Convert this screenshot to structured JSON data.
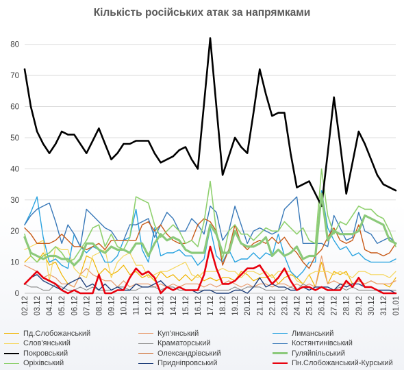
{
  "chart_data": {
    "type": "line",
    "title": "Кількість російських атак за напрямками",
    "xlabel": "",
    "ylabel": "",
    "ylim": [
      0,
      85
    ],
    "yticks": [
      0,
      10,
      20,
      30,
      40,
      50,
      60,
      70,
      80
    ],
    "grid": true,
    "legend_position": "bottom",
    "categories": [
      "02.12",
      "03.12",
      "04.12",
      "05.12",
      "06.12",
      "07.12",
      "08.12",
      "09.12",
      "10.12",
      "11.12",
      "12.12",
      "13.12",
      "14.12",
      "15.12",
      "16.12",
      "17.12",
      "18.12",
      "19.12",
      "20.12",
      "21.12",
      "22.12",
      "23.12",
      "24.12",
      "25.12",
      "26.12",
      "27.12",
      "28.12",
      "29.12",
      "30.12",
      "31.12",
      "01.01"
    ],
    "x": [
      "02.12",
      "",
      "03.12",
      "",
      "04.12",
      "",
      "05.12",
      "",
      "06.12",
      "",
      "07.12",
      "",
      "08.12",
      "",
      "09.12",
      "",
      "10.12",
      "",
      "11.12",
      "",
      "12.12",
      "",
      "13.12",
      "",
      "14.12",
      "",
      "15.12",
      "",
      "16.12",
      "",
      "17.12",
      "",
      "18.12",
      "",
      "19.12",
      "",
      "20.12",
      "",
      "21.12",
      "",
      "22.12",
      "",
      "23.12",
      "",
      "24.12",
      "",
      "25.12",
      "",
      "26.12",
      "",
      "27.12",
      "",
      "28.12",
      "",
      "29.12",
      "",
      "30.12",
      "",
      "31.12",
      "",
      "01.01"
    ],
    "series": [
      {
        "name": "Пд.Слобожанський",
        "color": "#f0b400",
        "width": 1.2,
        "values": [
          10,
          12,
          10,
          13,
          9,
          10,
          6,
          3,
          2,
          6,
          12,
          11,
          6,
          8,
          6,
          7,
          9,
          6,
          7,
          5,
          6,
          4,
          7,
          5,
          6,
          4,
          6,
          4,
          6,
          4,
          5,
          4,
          5,
          5,
          4,
          7,
          6,
          4,
          5,
          5,
          6,
          3,
          5,
          6,
          5,
          3,
          6,
          2,
          10,
          3,
          7,
          6,
          7,
          3,
          4,
          3,
          4,
          3,
          3,
          2,
          5
        ]
      },
      {
        "name": "Куп'янський",
        "color": "#e89a6c",
        "width": 1.2,
        "values": [
          9,
          8,
          7,
          5,
          6,
          5,
          3,
          3,
          2,
          6,
          8,
          6,
          5,
          4,
          4,
          2,
          4,
          2,
          3,
          3,
          3,
          2,
          3,
          2,
          3,
          2,
          3,
          3,
          3,
          2,
          3,
          2,
          3,
          4,
          3,
          2,
          3,
          2,
          3,
          3,
          2,
          3,
          3,
          2,
          3,
          2,
          3,
          2,
          12,
          3,
          4,
          3,
          3,
          3,
          4,
          3,
          4,
          3,
          3,
          3,
          4
        ]
      },
      {
        "name": "Лиманський",
        "color": "#29a3e0",
        "width": 1.4,
        "values": [
          22,
          26,
          31,
          18,
          10,
          11,
          9,
          8,
          19,
          15,
          13,
          15,
          14,
          10,
          10,
          12,
          17,
          18,
          27,
          14,
          10,
          21,
          12,
          13,
          13,
          14,
          12,
          12,
          9,
          11,
          21,
          12,
          10,
          14,
          10,
          11,
          11,
          13,
          11,
          13,
          12,
          19,
          12,
          7,
          5,
          7,
          10,
          10,
          33,
          21,
          17,
          14,
          15,
          12,
          13,
          11,
          10,
          10,
          10,
          10,
          11
        ]
      },
      {
        "name": "Слов'янський",
        "color": "#f5d65c",
        "width": 1.2,
        "values": [
          14,
          15,
          16,
          17,
          4,
          15,
          14,
          14,
          8,
          6,
          5,
          12,
          13,
          14,
          5,
          10,
          12,
          13,
          9,
          9,
          5,
          6,
          7,
          7,
          8,
          9,
          10,
          6,
          5,
          7,
          7,
          7,
          8,
          7,
          7,
          5,
          7,
          7,
          6,
          7,
          5,
          7,
          7,
          7,
          4,
          3,
          6,
          7,
          7,
          7,
          6,
          7,
          6,
          5,
          7,
          7,
          6,
          6,
          6,
          5,
          7
        ]
      },
      {
        "name": "Краматорський",
        "color": "#8f8f8f",
        "width": 1.2,
        "values": [
          3,
          2,
          2,
          1,
          1,
          3,
          2,
          1,
          1,
          2,
          1,
          2,
          1,
          1,
          1,
          2,
          2,
          1,
          1,
          2,
          2,
          2,
          1,
          2,
          2,
          1,
          1,
          1,
          1,
          1,
          1,
          1,
          1,
          1,
          2,
          1,
          2,
          2,
          2,
          1,
          1,
          1,
          1,
          2,
          1,
          3,
          2,
          1,
          2,
          1,
          1,
          2,
          1,
          2,
          1,
          1,
          1,
          1,
          1,
          1,
          1
        ]
      },
      {
        "name": "Костянтинівський",
        "color": "#3878b8",
        "width": 1.4,
        "values": [
          22,
          25,
          27,
          28,
          29,
          23,
          16,
          22,
          19,
          15,
          27,
          25,
          23,
          21,
          20,
          17,
          17,
          22,
          22,
          23,
          24,
          18,
          22,
          26,
          24,
          20,
          20,
          24,
          22,
          19,
          28,
          26,
          17,
          20,
          28,
          22,
          16,
          20,
          21,
          20,
          19,
          20,
          27,
          29,
          31,
          16,
          16,
          16,
          16,
          15,
          25,
          21,
          17,
          18,
          26,
          20,
          19,
          16,
          17,
          18,
          16
        ]
      },
      {
        "name": "Покровський",
        "color": "#000000",
        "width": 2.6,
        "values": [
          72,
          60,
          52,
          48,
          45,
          48,
          52,
          51,
          51,
          48,
          45,
          49,
          53,
          48,
          43,
          45,
          48,
          48,
          49,
          49,
          49,
          45,
          42,
          43,
          44,
          46,
          47,
          43,
          40,
          61,
          82,
          60,
          38,
          44,
          50,
          47,
          45,
          58,
          72,
          64,
          57,
          58,
          58,
          45,
          34,
          35,
          36,
          32,
          28,
          45,
          63,
          48,
          32,
          42,
          52,
          48,
          43,
          38,
          35,
          34,
          33
        ]
      },
      {
        "name": "Олександрівський",
        "color": "#c85a18",
        "width": 1.4,
        "values": [
          21,
          19,
          16,
          16,
          16,
          17,
          19,
          17,
          15,
          15,
          14,
          15,
          16,
          14,
          17,
          17,
          17,
          17,
          17,
          22,
          23,
          20,
          22,
          19,
          17,
          16,
          16,
          17,
          22,
          24,
          23,
          20,
          9,
          14,
          22,
          16,
          14,
          16,
          17,
          16,
          18,
          16,
          18,
          15,
          13,
          10,
          8,
          12,
          14,
          18,
          21,
          17,
          16,
          17,
          22,
          14,
          13,
          13,
          12,
          13,
          16
        ]
      },
      {
        "name": "Гуляйпільський",
        "color": "#8bc97a",
        "width": 3.2,
        "values": [
          18,
          13,
          12,
          11,
          12,
          12,
          11,
          11,
          9,
          11,
          16,
          16,
          14,
          13,
          15,
          14,
          14,
          13,
          16,
          16,
          12,
          16,
          19,
          17,
          18,
          17,
          14,
          13,
          13,
          13,
          22,
          19,
          13,
          13,
          20,
          16,
          15,
          15,
          16,
          18,
          12,
          14,
          12,
          13,
          15,
          11,
          12,
          12,
          32,
          17,
          20,
          19,
          19,
          19,
          20,
          25,
          24,
          23,
          22,
          17,
          16
        ]
      },
      {
        "name": "Оріхівський",
        "color": "#8fd06e",
        "width": 1.6,
        "values": [
          19,
          12,
          10,
          12,
          13,
          15,
          13,
          10,
          11,
          14,
          17,
          21,
          22,
          15,
          19,
          15,
          14,
          18,
          31,
          30,
          29,
          22,
          18,
          20,
          22,
          20,
          16,
          17,
          15,
          23,
          36,
          20,
          11,
          20,
          22,
          19,
          19,
          17,
          19,
          21,
          20,
          20,
          23,
          21,
          19,
          21,
          17,
          16,
          40,
          25,
          19,
          23,
          22,
          25,
          28,
          27,
          27,
          25,
          24,
          20,
          15
        ]
      },
      {
        "name": "Придніпровський",
        "color": "#1f3f7a",
        "width": 1.4,
        "values": [
          3,
          5,
          6,
          4,
          3,
          2,
          1,
          3,
          4,
          5,
          2,
          3,
          1,
          3,
          1,
          2,
          1,
          1,
          3,
          2,
          2,
          3,
          4,
          2,
          1,
          2,
          1,
          1,
          0,
          1,
          1,
          0,
          0,
          0,
          1,
          1,
          0,
          2,
          5,
          2,
          3,
          2,
          2,
          1,
          1,
          2,
          1,
          2,
          2,
          2,
          1,
          3,
          2,
          3,
          3,
          2,
          2,
          1,
          1,
          1,
          0
        ]
      },
      {
        "name": "Пн.Слобожанський-Курський",
        "color": "#e8000d",
        "width": 2.6,
        "values": [
          3,
          5,
          7,
          5,
          4,
          3,
          1,
          0,
          1,
          0,
          0,
          0,
          6,
          0,
          0,
          1,
          1,
          5,
          8,
          6,
          7,
          5,
          0,
          2,
          1,
          2,
          1,
          1,
          1,
          6,
          15,
          8,
          3,
          3,
          4,
          6,
          8,
          8,
          9,
          6,
          3,
          5,
          8,
          4,
          1,
          2,
          2,
          1,
          2,
          1,
          1,
          1,
          4,
          2,
          5,
          2,
          2,
          1,
          0,
          0,
          0
        ]
      }
    ]
  }
}
